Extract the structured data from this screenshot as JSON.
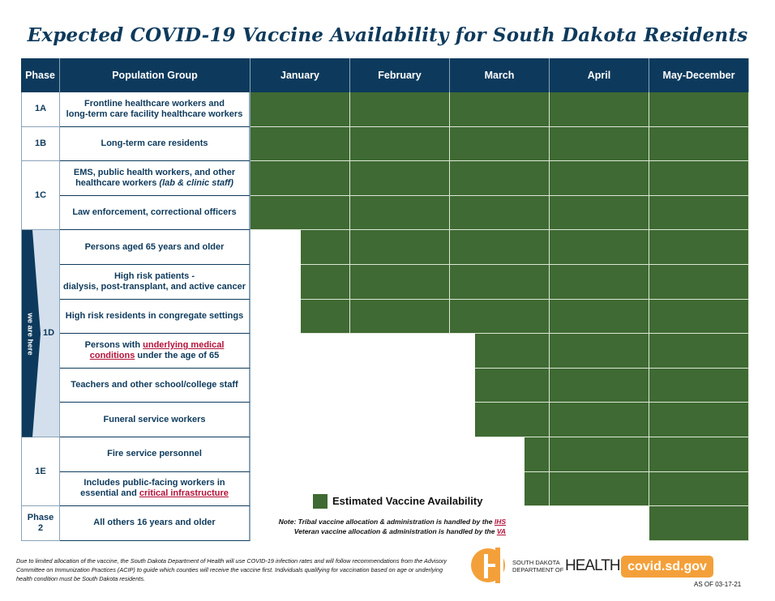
{
  "title": "Expected COVID-19 Vaccine Availability for South Dakota Residents",
  "headers": {
    "phase": "Phase",
    "population": "Population Group",
    "months": [
      "January",
      "February",
      "March",
      "April",
      "May-December"
    ]
  },
  "phases": [
    {
      "label": "1A",
      "rows": 1
    },
    {
      "label": "1B",
      "rows": 1
    },
    {
      "label": "1C",
      "rows": 2
    },
    {
      "label": "1D",
      "rows": 6,
      "marker": "we are here"
    },
    {
      "label": "1E",
      "rows": 2
    },
    {
      "label": "Phase 2",
      "rows": 1
    }
  ],
  "rows": [
    {
      "segments": [
        {
          "t": "Frontline healthcare workers and"
        },
        {
          "t": "long-term care facility healthcare workers",
          "br": true
        }
      ],
      "availability_start_month": 0
    },
    {
      "segments": [
        {
          "t": "Long-term care residents"
        }
      ],
      "availability_start_month": 0
    },
    {
      "segments": [
        {
          "t": "EMS, public health workers, and other"
        },
        {
          "t": "healthcare workers ",
          "br": true
        },
        {
          "t": "(lab & clinic staff)",
          "em": true
        }
      ],
      "availability_start_month": 0
    },
    {
      "segments": [
        {
          "t": "Law enforcement, correctional officers"
        }
      ],
      "availability_start_month": 0
    },
    {
      "segments": [
        {
          "t": "Persons aged 65 years and older"
        }
      ],
      "availability_start_month": 0.5
    },
    {
      "segments": [
        {
          "t": "High risk patients -"
        },
        {
          "t": "dialysis, post-transplant, and active cancer",
          "br": true
        }
      ],
      "availability_start_month": 0.5
    },
    {
      "segments": [
        {
          "t": "High risk residents in congregate settings"
        }
      ],
      "availability_start_month": 0.5
    },
    {
      "segments": [
        {
          "t": "Persons with "
        },
        {
          "t": "underlying medical",
          "link": true
        },
        {
          "t": "conditions",
          "link": true,
          "br": true
        },
        {
          "t": " under the age of 65"
        }
      ],
      "availability_start_month": 2.25
    },
    {
      "segments": [
        {
          "t": "Teachers and other school/college staff"
        }
      ],
      "availability_start_month": 2.25
    },
    {
      "segments": [
        {
          "t": "Funeral service workers"
        }
      ],
      "availability_start_month": 2.25
    },
    {
      "segments": [
        {
          "t": "Fire service personnel"
        }
      ],
      "availability_start_month": 2.75
    },
    {
      "segments": [
        {
          "t": "Includes public-facing workers in"
        },
        {
          "t": "essential and ",
          "br": true
        },
        {
          "t": "critical infrastructure",
          "link": true
        }
      ],
      "availability_start_month": 2.75
    },
    {
      "segments": [
        {
          "t": "All others 16 years and older"
        }
      ],
      "availability_start_month": 4
    }
  ],
  "legend": "Estimated Vaccine Availability",
  "notes": {
    "tribal": "Note: Tribal vaccine allocation & administration is handled by the ",
    "tribal_link": "IHS",
    "veteran": "Veteran vaccine allocation & administration is handled by the ",
    "veteran_link": "VA"
  },
  "footer": "Due to limited allocation of the vaccine, the South Dakota Department of Health will use COVID-19 infection rates and will follow recommendations from the Advisory Committee on Immunization Practices (ACIP) to guide which counties will receive the vaccine first. Individuals qualifying for vaccination based on age or underlying health condition must be South Dakota residents.",
  "logo": {
    "line1": "SOUTH DAKOTA",
    "line2": "DEPARTMENT OF",
    "word": "HEALTH"
  },
  "website": "covid.sd.gov",
  "as_of": "AS OF 03-17-21",
  "colors": {
    "navy": "#0d3a5c",
    "green": "#3f6a33",
    "orange": "#f4a03a",
    "link": "#b5123a",
    "marker_bg": "#d3dfec"
  }
}
